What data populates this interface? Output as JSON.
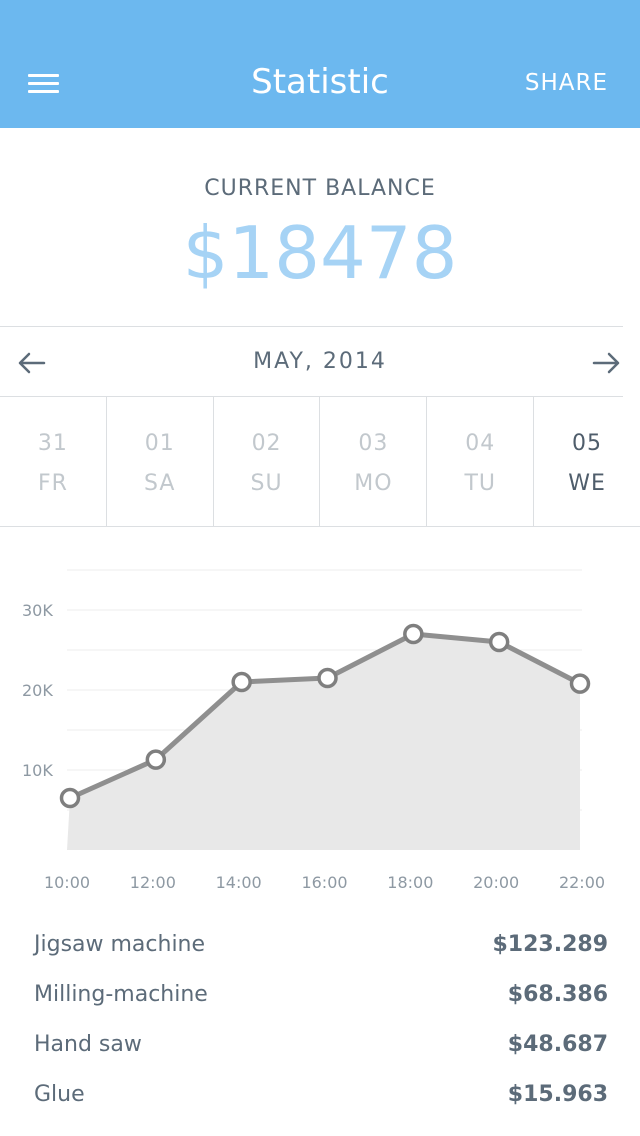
{
  "header": {
    "title": "Statistic",
    "share_label": "SHARE"
  },
  "balance": {
    "label": "CURRENT BALANCE",
    "value": "$18478"
  },
  "month": {
    "label": "MAY, 2014"
  },
  "days": [
    {
      "num": "31",
      "name": "FR",
      "active": false
    },
    {
      "num": "01",
      "name": "SA",
      "active": false
    },
    {
      "num": "02",
      "name": "SU",
      "active": false
    },
    {
      "num": "03",
      "name": "MO",
      "active": false
    },
    {
      "num": "04",
      "name": "TU",
      "active": false
    },
    {
      "num": "05",
      "name": "WE",
      "active": true
    }
  ],
  "chart_data": {
    "type": "area",
    "categories": [
      "10:00",
      "12:00",
      "14:00",
      "16:00",
      "18:00",
      "20:00",
      "22:00"
    ],
    "values": [
      6500,
      11300,
      21000,
      21500,
      27000,
      26000,
      20800
    ],
    "y_ticks": [
      {
        "value": 10000,
        "label": "10K"
      },
      {
        "value": 20000,
        "label": "20K"
      },
      {
        "value": 30000,
        "label": "30K"
      }
    ],
    "ylim": [
      0,
      35000
    ],
    "grid": true
  },
  "items": [
    {
      "name": "Jigsaw machine",
      "amount": "$123.289"
    },
    {
      "name": "Milling-machine",
      "amount": "$68.386"
    },
    {
      "name": "Hand saw",
      "amount": "$48.687"
    },
    {
      "name": "Glue",
      "amount": "$15.963"
    }
  ],
  "colors": {
    "accent": "#6cb8ef",
    "balance": "#a6d3f5",
    "line": "#8f8f8f",
    "area": "#e8e8e8"
  }
}
